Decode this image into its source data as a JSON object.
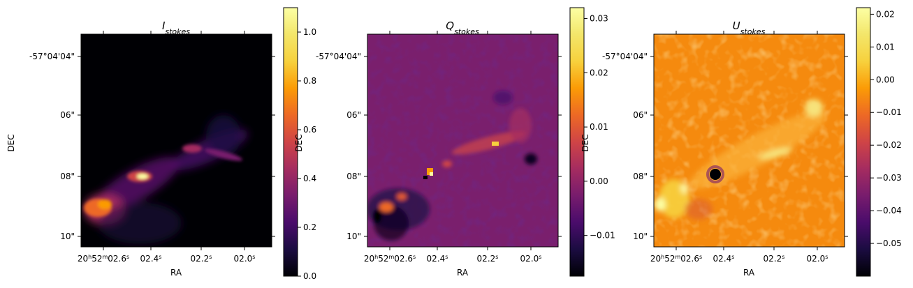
{
  "chart_data": [
    {
      "type": "heatmap",
      "title_main": "I",
      "title_sub": "stokes",
      "xlabel": "RA",
      "ylabel": "DEC",
      "colormap": "inferno",
      "xticks": [
        {
          "h": "20",
          "m": "52",
          "s": "02.6",
          "sup_s": "s",
          "full": true
        },
        {
          "s": "02.4",
          "sup_s": "s"
        },
        {
          "s": "02.2",
          "sup_s": "s"
        },
        {
          "s": "02.0",
          "sup_s": "s"
        }
      ],
      "yticks": [
        "-57°04'04\"",
        "06\"",
        "08\"",
        "10\""
      ],
      "colorbar": {
        "min": 0.0,
        "max": 1.1,
        "ticks": [
          "0.0",
          "0.2",
          "0.4",
          "0.6",
          "0.8",
          "1.0"
        ],
        "tick_values": [
          0.0,
          0.2,
          0.4,
          0.6,
          0.8,
          1.0
        ]
      }
    },
    {
      "type": "heatmap",
      "title_main": "Q",
      "title_sub": "stokes",
      "xlabel": "RA",
      "ylabel": "DEC",
      "colormap": "inferno",
      "xticks": [
        {
          "h": "20",
          "m": "52",
          "s": "02.6",
          "sup_s": "s",
          "full": true
        },
        {
          "s": "02.4",
          "sup_s": "s"
        },
        {
          "s": "02.2",
          "sup_s": "s"
        },
        {
          "s": "02.0",
          "sup_s": "s"
        }
      ],
      "yticks": [
        "-57°04'04\"",
        "06\"",
        "08\"",
        "10\""
      ],
      "colorbar": {
        "min": -0.0175,
        "max": 0.032,
        "ticks": [
          "−0.01",
          "0.00",
          "0.01",
          "0.02",
          "0.03"
        ],
        "tick_values": [
          -0.01,
          0.0,
          0.01,
          0.02,
          0.03
        ]
      }
    },
    {
      "type": "heatmap",
      "title_main": "U",
      "title_sub": "stokes",
      "xlabel": "RA",
      "ylabel": "DEC",
      "colormap": "inferno",
      "xticks": [
        {
          "h": "20",
          "m": "52",
          "s": "02.6",
          "sup_s": "s",
          "full": true
        },
        {
          "s": "02.4",
          "sup_s": "s"
        },
        {
          "s": "02.2",
          "sup_s": "s"
        },
        {
          "s": "02.0",
          "sup_s": "s"
        }
      ],
      "yticks": [
        "-57°04'04\"",
        "06\"",
        "08\"",
        "10\""
      ],
      "colorbar": {
        "min": -0.06,
        "max": 0.022,
        "ticks": [
          "−0.05",
          "−0.04",
          "−0.03",
          "−0.02",
          "−0.01",
          "0.00",
          "0.01",
          "0.02"
        ],
        "tick_values": [
          -0.05,
          -0.04,
          -0.03,
          -0.02,
          -0.01,
          0.0,
          0.01,
          0.02
        ]
      }
    }
  ]
}
